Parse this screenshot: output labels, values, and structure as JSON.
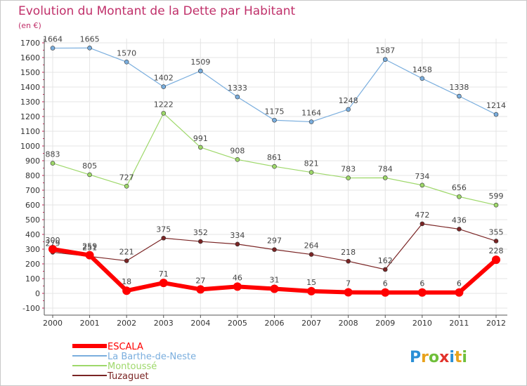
{
  "chart_data": {
    "type": "line",
    "title": "Evolution du Montant de la Dette par Habitant",
    "subtitle": "(en €)",
    "x": [
      "2000",
      "2001",
      "2002",
      "2003",
      "2004",
      "2005",
      "2006",
      "2007",
      "2008",
      "2009",
      "2010",
      "2011",
      "2012"
    ],
    "ylim": [
      -100,
      1700
    ],
    "yticks": [
      -100,
      0,
      100,
      200,
      300,
      400,
      500,
      600,
      700,
      800,
      900,
      1000,
      1100,
      1200,
      1300,
      1400,
      1500,
      1600,
      1700
    ],
    "grid": true,
    "legend_position": "bottom-left",
    "series": [
      {
        "name": "ESCALA",
        "color": "#ff0000",
        "width": 6,
        "values": [
          300,
          259,
          18,
          71,
          27,
          46,
          31,
          15,
          7,
          6,
          6,
          6,
          228
        ]
      },
      {
        "name": "La Barthe-de-Neste",
        "color": "#7aaede",
        "width": 1.2,
        "values": [
          1664,
          1665,
          1570,
          1402,
          1509,
          1333,
          1175,
          1164,
          1248,
          1587,
          1458,
          1338,
          1214
        ]
      },
      {
        "name": "Montoussé",
        "color": "#9ed86a",
        "width": 1.2,
        "values": [
          883,
          805,
          727,
          1222,
          991,
          908,
          861,
          821,
          783,
          784,
          734,
          656,
          599
        ]
      },
      {
        "name": "Tuzaguet",
        "color": "#7a2424",
        "width": 1.2,
        "values": [
          279,
          251,
          221,
          375,
          352,
          334,
          297,
          264,
          218,
          162,
          472,
          436,
          355
        ]
      }
    ]
  },
  "logo": {
    "letters": [
      "P",
      "r",
      "o",
      "x",
      "i",
      "t",
      "i"
    ],
    "colors": [
      "#2a8fd6",
      "#e8a21c",
      "#6fbf3a",
      "#e2322b",
      "#2a8fd6",
      "#e8a21c",
      "#6fbf3a"
    ]
  }
}
